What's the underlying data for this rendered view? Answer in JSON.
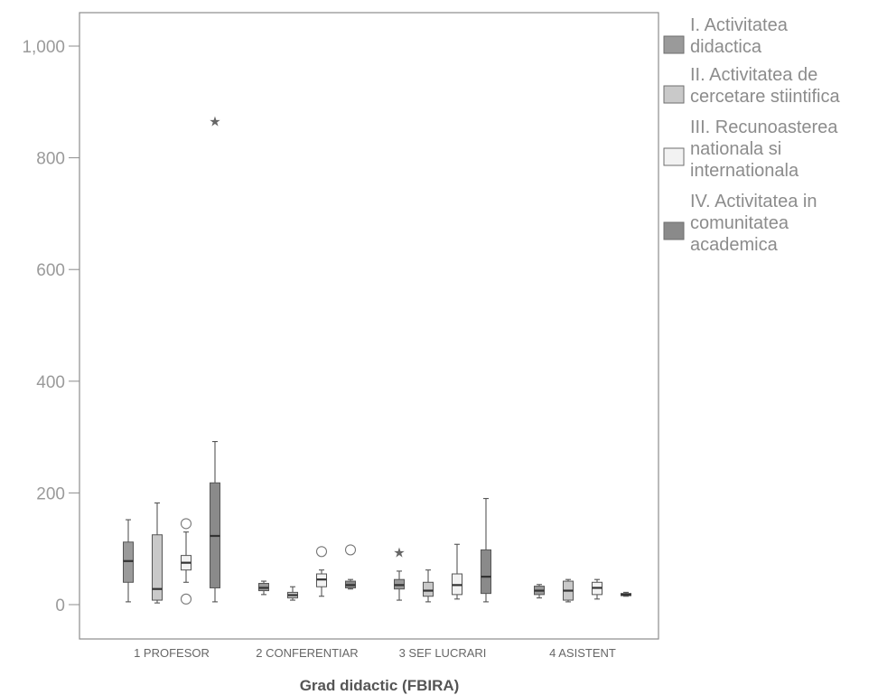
{
  "chart_data": {
    "type": "boxplot",
    "xlabel": "Grad didactic (FBIRA)",
    "ylabel": "",
    "ylim": [
      -30,
      1050
    ],
    "yticks": [
      0,
      200,
      400,
      600,
      800,
      1000
    ],
    "ytick_labels": [
      "0",
      "200",
      "400",
      "600",
      "800",
      "1,000"
    ],
    "grid": false,
    "legend_position": "right",
    "categories": [
      "1 PROFESOR",
      "2 CONFERENTIAR",
      "3 SEF LUCRARI",
      "4 ASISTENT"
    ],
    "series": [
      {
        "name": "I. Activitatea didactica",
        "color": "#9a9a9a",
        "boxes": [
          {
            "min": 5,
            "q1": 40,
            "median": 78,
            "q3": 112,
            "max": 152,
            "outliers": [],
            "extremes": []
          },
          {
            "min": 18,
            "q1": 25,
            "median": 30,
            "q3": 38,
            "max": 42,
            "outliers": [],
            "extremes": []
          },
          {
            "min": 8,
            "q1": 28,
            "median": 35,
            "q3": 45,
            "max": 60,
            "outliers": [],
            "extremes": [
              93
            ]
          },
          {
            "min": 12,
            "q1": 18,
            "median": 25,
            "q3": 33,
            "max": 36,
            "outliers": [],
            "extremes": []
          }
        ]
      },
      {
        "name": "II. Activitatea de cercetare stiintifica",
        "color": "#c9c9c9",
        "boxes": [
          {
            "min": 3,
            "q1": 8,
            "median": 28,
            "q3": 125,
            "max": 182,
            "outliers": [],
            "extremes": []
          },
          {
            "min": 8,
            "q1": 12,
            "median": 17,
            "q3": 22,
            "max": 32,
            "outliers": [],
            "extremes": []
          },
          {
            "min": 5,
            "q1": 15,
            "median": 25,
            "q3": 40,
            "max": 62,
            "outliers": [],
            "extremes": []
          },
          {
            "min": 5,
            "q1": 8,
            "median": 25,
            "q3": 42,
            "max": 45,
            "outliers": [],
            "extremes": []
          }
        ]
      },
      {
        "name": "III. Recunoasterea nationala si internationala",
        "color": "#f2f2f2",
        "boxes": [
          {
            "min": 40,
            "q1": 62,
            "median": 75,
            "q3": 88,
            "max": 130,
            "outliers": [
              145,
              10
            ],
            "extremes": []
          },
          {
            "min": 15,
            "q1": 32,
            "median": 45,
            "q3": 55,
            "max": 62,
            "outliers": [
              95
            ],
            "extremes": []
          },
          {
            "min": 10,
            "q1": 18,
            "median": 35,
            "q3": 55,
            "max": 108,
            "outliers": [],
            "extremes": []
          },
          {
            "min": 10,
            "q1": 18,
            "median": 30,
            "q3": 40,
            "max": 45,
            "outliers": [],
            "extremes": []
          }
        ]
      },
      {
        "name": "IV. Activitatea in comunitatea academica",
        "color": "#8a8a8a",
        "boxes": [
          {
            "min": 5,
            "q1": 30,
            "median": 123,
            "q3": 218,
            "max": 292,
            "outliers": [],
            "extremes": [
              865
            ]
          },
          {
            "min": 28,
            "q1": 30,
            "median": 35,
            "q3": 42,
            "max": 45,
            "outliers": [
              98
            ],
            "extremes": []
          },
          {
            "min": 5,
            "q1": 20,
            "median": 50,
            "q3": 98,
            "max": 190,
            "outliers": [],
            "extremes": []
          },
          {
            "min": 15,
            "q1": 16,
            "median": 18,
            "q3": 20,
            "max": 22,
            "outliers": [],
            "extremes": []
          }
        ]
      }
    ]
  }
}
